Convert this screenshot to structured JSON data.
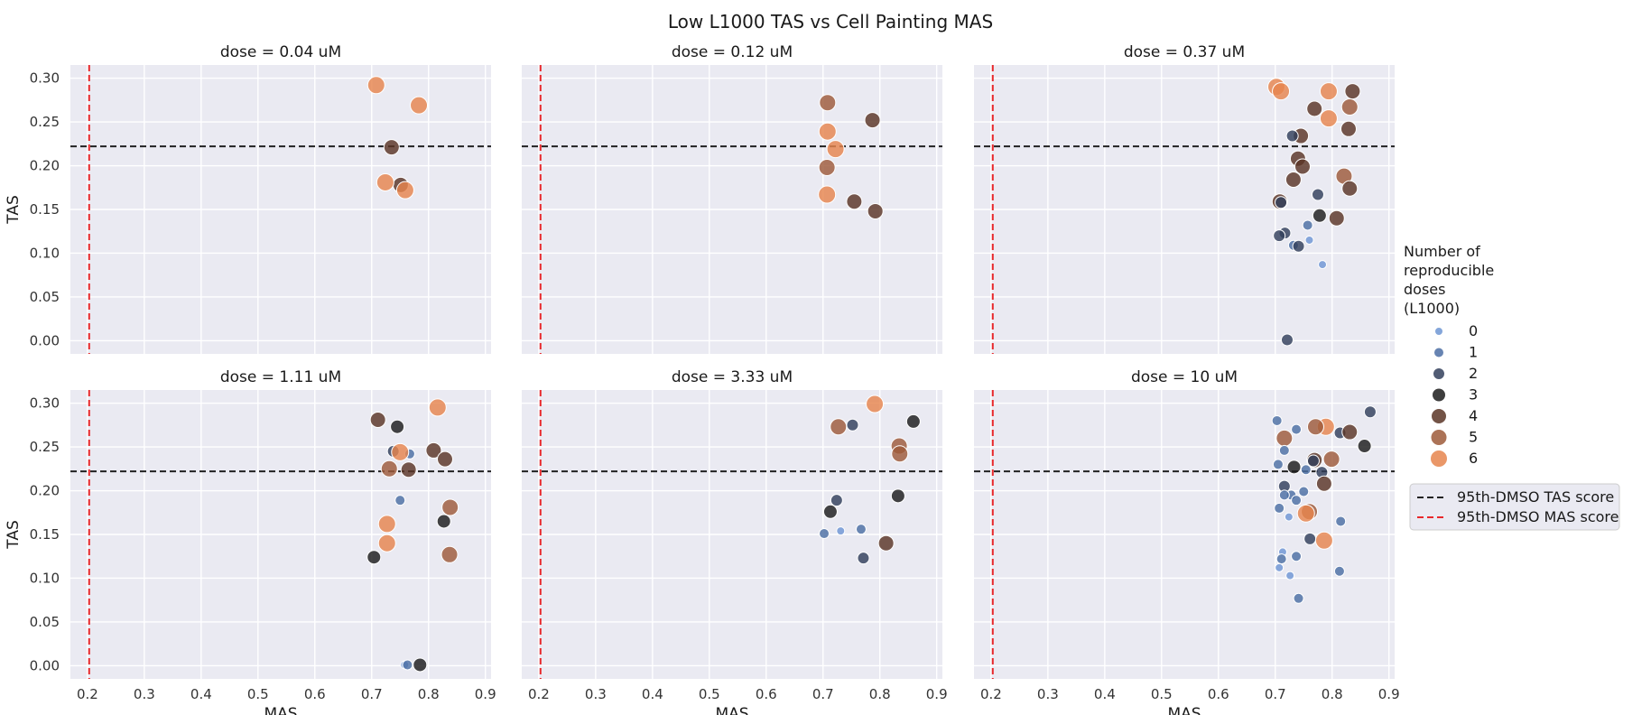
{
  "chart_data": {
    "type": "scatter",
    "title": "Low L1000 TAS vs Cell Painting MAS",
    "xlabel": "MAS",
    "ylabel": "TAS",
    "xlim": [
      0.17,
      0.91
    ],
    "ylim": [
      -0.015,
      0.315
    ],
    "xticks": [
      "0.2",
      "0.3",
      "0.4",
      "0.5",
      "0.6",
      "0.7",
      "0.8",
      "0.9"
    ],
    "yticks": [
      "0.00",
      "0.05",
      "0.10",
      "0.15",
      "0.20",
      "0.25",
      "0.30"
    ],
    "reference_lines": {
      "tas_threshold": 0.222,
      "mas_threshold": 0.203,
      "tas_label": "95th-DMSO TAS score",
      "mas_label": "95th-DMSO MAS score",
      "tas_color": "#222222",
      "mas_color": "#e8282b"
    },
    "hue_legend_title": [
      "Number of",
      "reproducible",
      "doses",
      "(L1000)"
    ],
    "hue_levels": [
      "0",
      "1",
      "2",
      "3",
      "4",
      "5",
      "6"
    ],
    "hue_colors": [
      "#6f96d4",
      "#4c6fa4",
      "#323f5c",
      "#1c1c1c",
      "#5a3526",
      "#9e5a3a",
      "#e6854e"
    ],
    "grid": true,
    "legend_position": "right",
    "facets": [
      {
        "title": "dose = 0.04 uM",
        "points": [
          {
            "x": 0.708,
            "y": 0.292,
            "n": 6
          },
          {
            "x": 0.783,
            "y": 0.269,
            "n": 6
          },
          {
            "x": 0.735,
            "y": 0.221,
            "n": 4
          },
          {
            "x": 0.751,
            "y": 0.178,
            "n": 4
          },
          {
            "x": 0.724,
            "y": 0.181,
            "n": 6
          },
          {
            "x": 0.759,
            "y": 0.172,
            "n": 6
          }
        ]
      },
      {
        "title": "dose = 0.12 uM",
        "points": [
          {
            "x": 0.708,
            "y": 0.272,
            "n": 5
          },
          {
            "x": 0.787,
            "y": 0.252,
            "n": 4
          },
          {
            "x": 0.708,
            "y": 0.239,
            "n": 6
          },
          {
            "x": 0.722,
            "y": 0.219,
            "n": 6
          },
          {
            "x": 0.707,
            "y": 0.198,
            "n": 5
          },
          {
            "x": 0.707,
            "y": 0.167,
            "n": 6
          },
          {
            "x": 0.755,
            "y": 0.159,
            "n": 4
          },
          {
            "x": 0.792,
            "y": 0.148,
            "n": 4
          }
        ]
      },
      {
        "title": "dose = 0.37 uM",
        "points": [
          {
            "x": 0.702,
            "y": 0.29,
            "n": 6
          },
          {
            "x": 0.71,
            "y": 0.285,
            "n": 6
          },
          {
            "x": 0.794,
            "y": 0.285,
            "n": 6
          },
          {
            "x": 0.836,
            "y": 0.285,
            "n": 4
          },
          {
            "x": 0.769,
            "y": 0.265,
            "n": 4
          },
          {
            "x": 0.831,
            "y": 0.267,
            "n": 5
          },
          {
            "x": 0.794,
            "y": 0.254,
            "n": 6
          },
          {
            "x": 0.829,
            "y": 0.242,
            "n": 4
          },
          {
            "x": 0.745,
            "y": 0.234,
            "n": 4
          },
          {
            "x": 0.73,
            "y": 0.234,
            "n": 2
          },
          {
            "x": 0.74,
            "y": 0.208,
            "n": 4
          },
          {
            "x": 0.748,
            "y": 0.199,
            "n": 4
          },
          {
            "x": 0.821,
            "y": 0.188,
            "n": 5
          },
          {
            "x": 0.732,
            "y": 0.184,
            "n": 4
          },
          {
            "x": 0.831,
            "y": 0.174,
            "n": 4
          },
          {
            "x": 0.775,
            "y": 0.167,
            "n": 2
          },
          {
            "x": 0.708,
            "y": 0.159,
            "n": 4
          },
          {
            "x": 0.71,
            "y": 0.158,
            "n": 2
          },
          {
            "x": 0.778,
            "y": 0.143,
            "n": 3
          },
          {
            "x": 0.808,
            "y": 0.14,
            "n": 4
          },
          {
            "x": 0.757,
            "y": 0.132,
            "n": 1
          },
          {
            "x": 0.717,
            "y": 0.123,
            "n": 2
          },
          {
            "x": 0.707,
            "y": 0.12,
            "n": 2
          },
          {
            "x": 0.732,
            "y": 0.109,
            "n": 1
          },
          {
            "x": 0.741,
            "y": 0.108,
            "n": 2
          },
          {
            "x": 0.76,
            "y": 0.115,
            "n": 0
          },
          {
            "x": 0.783,
            "y": 0.087,
            "n": 0
          },
          {
            "x": 0.721,
            "y": 0.001,
            "n": 2
          }
        ]
      },
      {
        "title": "dose = 1.11 uM",
        "points": [
          {
            "x": 0.816,
            "y": 0.295,
            "n": 6
          },
          {
            "x": 0.711,
            "y": 0.281,
            "n": 4
          },
          {
            "x": 0.745,
            "y": 0.273,
            "n": 3
          },
          {
            "x": 0.738,
            "y": 0.245,
            "n": 2
          },
          {
            "x": 0.767,
            "y": 0.242,
            "n": 1
          },
          {
            "x": 0.809,
            "y": 0.246,
            "n": 4
          },
          {
            "x": 0.829,
            "y": 0.236,
            "n": 4
          },
          {
            "x": 0.75,
            "y": 0.244,
            "n": 6
          },
          {
            "x": 0.731,
            "y": 0.225,
            "n": 5
          },
          {
            "x": 0.765,
            "y": 0.224,
            "n": 4
          },
          {
            "x": 0.75,
            "y": 0.189,
            "n": 1
          },
          {
            "x": 0.838,
            "y": 0.181,
            "n": 5
          },
          {
            "x": 0.827,
            "y": 0.165,
            "n": 3
          },
          {
            "x": 0.727,
            "y": 0.162,
            "n": 6
          },
          {
            "x": 0.727,
            "y": 0.14,
            "n": 6
          },
          {
            "x": 0.837,
            "y": 0.127,
            "n": 5
          },
          {
            "x": 0.704,
            "y": 0.124,
            "n": 3
          },
          {
            "x": 0.758,
            "y": 0.001,
            "n": 0
          },
          {
            "x": 0.763,
            "y": 0.001,
            "n": 1
          },
          {
            "x": 0.785,
            "y": 0.001,
            "n": 3
          }
        ]
      },
      {
        "title": "dose = 3.33 uM",
        "points": [
          {
            "x": 0.791,
            "y": 0.299,
            "n": 6
          },
          {
            "x": 0.859,
            "y": 0.279,
            "n": 3
          },
          {
            "x": 0.727,
            "y": 0.273,
            "n": 5
          },
          {
            "x": 0.752,
            "y": 0.275,
            "n": 2
          },
          {
            "x": 0.834,
            "y": 0.251,
            "n": 5
          },
          {
            "x": 0.835,
            "y": 0.242,
            "n": 5
          },
          {
            "x": 0.832,
            "y": 0.194,
            "n": 3
          },
          {
            "x": 0.724,
            "y": 0.189,
            "n": 2
          },
          {
            "x": 0.713,
            "y": 0.176,
            "n": 3
          },
          {
            "x": 0.767,
            "y": 0.156,
            "n": 1
          },
          {
            "x": 0.731,
            "y": 0.154,
            "n": 0
          },
          {
            "x": 0.702,
            "y": 0.151,
            "n": 1
          },
          {
            "x": 0.811,
            "y": 0.14,
            "n": 4
          },
          {
            "x": 0.771,
            "y": 0.123,
            "n": 2
          }
        ]
      },
      {
        "title": "dose = 10 uM",
        "points": [
          {
            "x": 0.867,
            "y": 0.29,
            "n": 2
          },
          {
            "x": 0.703,
            "y": 0.28,
            "n": 1
          },
          {
            "x": 0.789,
            "y": 0.273,
            "n": 6
          },
          {
            "x": 0.771,
            "y": 0.273,
            "n": 5
          },
          {
            "x": 0.737,
            "y": 0.27,
            "n": 1
          },
          {
            "x": 0.814,
            "y": 0.266,
            "n": 2
          },
          {
            "x": 0.831,
            "y": 0.267,
            "n": 4
          },
          {
            "x": 0.716,
            "y": 0.26,
            "n": 5
          },
          {
            "x": 0.857,
            "y": 0.251,
            "n": 3
          },
          {
            "x": 0.716,
            "y": 0.246,
            "n": 1
          },
          {
            "x": 0.769,
            "y": 0.235,
            "n": 4
          },
          {
            "x": 0.799,
            "y": 0.236,
            "n": 5
          },
          {
            "x": 0.767,
            "y": 0.234,
            "n": 2
          },
          {
            "x": 0.705,
            "y": 0.23,
            "n": 1
          },
          {
            "x": 0.733,
            "y": 0.227,
            "n": 3
          },
          {
            "x": 0.754,
            "y": 0.224,
            "n": 1
          },
          {
            "x": 0.782,
            "y": 0.221,
            "n": 2
          },
          {
            "x": 0.786,
            "y": 0.208,
            "n": 4
          },
          {
            "x": 0.716,
            "y": 0.205,
            "n": 2
          },
          {
            "x": 0.75,
            "y": 0.199,
            "n": 1
          },
          {
            "x": 0.728,
            "y": 0.195,
            "n": 1
          },
          {
            "x": 0.716,
            "y": 0.195,
            "n": 1
          },
          {
            "x": 0.737,
            "y": 0.189,
            "n": 1
          },
          {
            "x": 0.707,
            "y": 0.18,
            "n": 1
          },
          {
            "x": 0.76,
            "y": 0.176,
            "n": 5
          },
          {
            "x": 0.754,
            "y": 0.174,
            "n": 6
          },
          {
            "x": 0.724,
            "y": 0.17,
            "n": 0
          },
          {
            "x": 0.815,
            "y": 0.165,
            "n": 1
          },
          {
            "x": 0.761,
            "y": 0.145,
            "n": 2
          },
          {
            "x": 0.786,
            "y": 0.143,
            "n": 6
          },
          {
            "x": 0.713,
            "y": 0.13,
            "n": 0
          },
          {
            "x": 0.737,
            "y": 0.125,
            "n": 1
          },
          {
            "x": 0.711,
            "y": 0.122,
            "n": 1
          },
          {
            "x": 0.707,
            "y": 0.112,
            "n": 0
          },
          {
            "x": 0.813,
            "y": 0.108,
            "n": 1
          },
          {
            "x": 0.726,
            "y": 0.103,
            "n": 0
          },
          {
            "x": 0.741,
            "y": 0.077,
            "n": 1
          }
        ]
      }
    ]
  }
}
